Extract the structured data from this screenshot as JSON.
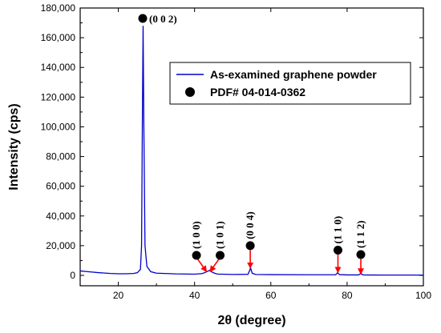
{
  "chart_data": {
    "type": "line",
    "xlabel": "2θ (degree)",
    "ylabel": "Intensity (cps)",
    "xlim": [
      10,
      100
    ],
    "ylim": [
      -7000,
      180000
    ],
    "x_ticks": [
      20,
      40,
      60,
      80,
      100
    ],
    "y_ticks": [
      0,
      20000,
      40000,
      60000,
      80000,
      100000,
      120000,
      140000,
      160000,
      180000
    ],
    "y_tick_labels": [
      "0",
      "20,000",
      "40,000",
      "60,000",
      "80,000",
      "100,000",
      "120,000",
      "140,000",
      "160,000",
      "180,000"
    ],
    "grid": false,
    "legend_position": "top-right",
    "series": [
      {
        "name": "As-examined graphene powder",
        "color": "#0000cc",
        "x": [
          10,
          12,
          15,
          18,
          20,
          22,
          24,
          25,
          25.8,
          26.1,
          26.3,
          26.5,
          26.7,
          27.0,
          27.5,
          28.5,
          30,
          35,
          40,
          42,
          43,
          44,
          44.6,
          45.2,
          46,
          50,
          54,
          54.4,
          54.7,
          55.1,
          56,
          60,
          70,
          77,
          77.5,
          78,
          80,
          83,
          83.6,
          84.2,
          86,
          90,
          95,
          100
        ],
        "y": [
          3000,
          2500,
          1800,
          1300,
          1100,
          1100,
          1300,
          1800,
          4000,
          20000,
          100000,
          168000,
          100000,
          20000,
          6000,
          2500,
          1500,
          1000,
          800,
          1200,
          2200,
          3500,
          2200,
          1500,
          900,
          600,
          700,
          3000,
          5000,
          1500,
          600,
          500,
          400,
          400,
          1800,
          500,
          300,
          300,
          1200,
          300,
          250,
          200,
          200,
          200
        ]
      },
      {
        "name": "PDF# 04-014-0362",
        "marker": "filled-circle",
        "color": "#000000",
        "points": [
          {
            "x": 26.4,
            "y": 173000,
            "label": "(0 0 2)"
          },
          {
            "x": 40.5,
            "y": 13500,
            "label": "(1 0 0)"
          },
          {
            "x": 46.7,
            "y": 13500,
            "label": "(1 0 1)"
          },
          {
            "x": 54.6,
            "y": 20000,
            "label": "(0 0 4)"
          },
          {
            "x": 77.6,
            "y": 17000,
            "label": "(1 1 0)"
          },
          {
            "x": 83.6,
            "y": 14000,
            "label": "(1 1 2)"
          }
        ]
      }
    ],
    "arrows": [
      {
        "label": "(1 0 0)",
        "from": [
          40.8,
          11000
        ],
        "to": [
          43.0,
          3000
        ],
        "color": "#ff0000"
      },
      {
        "label": "(1 0 1)",
        "from": [
          46.4,
          11000
        ],
        "to": [
          44.2,
          3000
        ],
        "color": "#ff0000"
      },
      {
        "label": "(0 0 4)",
        "from": [
          54.6,
          17000
        ],
        "to": [
          54.6,
          5500
        ],
        "color": "#ff0000"
      },
      {
        "label": "(1 1 0)",
        "from": [
          77.6,
          14000
        ],
        "to": [
          77.6,
          2500
        ],
        "color": "#ff0000"
      },
      {
        "label": "(1 1 2)",
        "from": [
          83.6,
          11000
        ],
        "to": [
          83.6,
          1500
        ],
        "color": "#ff0000"
      }
    ]
  }
}
